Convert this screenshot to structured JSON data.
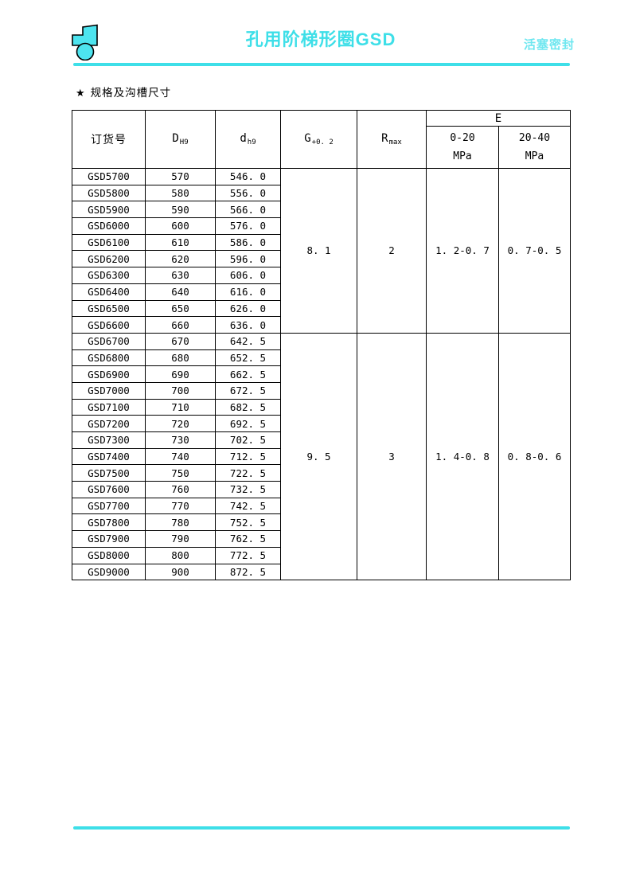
{
  "page": {
    "title": "孔用阶梯形圈GSD",
    "corner_label": "活塞密封",
    "section_heading": {
      "star": "★",
      "text": "规格及沟槽尺寸"
    },
    "colors": {
      "accent": "#3EDFE8",
      "accent_light": "#6FE7F0",
      "table_border": "#000000",
      "text": "#000000"
    },
    "icons": {
      "logo": "seal-cross-section-icon",
      "star": "star-icon"
    }
  },
  "table": {
    "headers": {
      "order_no": "订货号",
      "D_base": "D",
      "D_sub": "H9",
      "d_base": "d",
      "d_sub": "h9",
      "G_base": "G",
      "G_sub": "+0. 2",
      "R_base": "R",
      "R_sub": "max",
      "E": "E",
      "E_col1_range": "0-20",
      "E_col1_unit": "MPa",
      "E_col2_range": "20-40",
      "E_col2_unit": "MPa"
    },
    "groups": [
      {
        "G": "8. 1",
        "R": "2",
        "E1": "1. 2-0. 7",
        "E2": "0. 7-0. 5",
        "rows": [
          [
            "GSD5700",
            "570",
            "546. 0"
          ],
          [
            "GSD5800",
            "580",
            "556. 0"
          ],
          [
            "GSD5900",
            "590",
            "566. 0"
          ],
          [
            "GSD6000",
            "600",
            "576. 0"
          ],
          [
            "GSD6100",
            "610",
            "586. 0"
          ],
          [
            "GSD6200",
            "620",
            "596. 0"
          ],
          [
            "GSD6300",
            "630",
            "606. 0"
          ],
          [
            "GSD6400",
            "640",
            "616. 0"
          ],
          [
            "GSD6500",
            "650",
            "626. 0"
          ],
          [
            "GSD6600",
            "660",
            "636. 0"
          ]
        ]
      },
      {
        "G": "9. 5",
        "R": "3",
        "E1": "1. 4-0. 8",
        "E2": "0. 8-0. 6",
        "rows": [
          [
            "GSD6700",
            "670",
            "642. 5"
          ],
          [
            "GSD6800",
            "680",
            "652. 5"
          ],
          [
            "GSD6900",
            "690",
            "662. 5"
          ],
          [
            "GSD7000",
            "700",
            "672. 5"
          ],
          [
            "GSD7100",
            "710",
            "682. 5"
          ],
          [
            "GSD7200",
            "720",
            "692. 5"
          ],
          [
            "GSD7300",
            "730",
            "702. 5"
          ],
          [
            "GSD7400",
            "740",
            "712. 5"
          ],
          [
            "GSD7500",
            "750",
            "722. 5"
          ],
          [
            "GSD7600",
            "760",
            "732. 5"
          ],
          [
            "GSD7700",
            "770",
            "742. 5"
          ],
          [
            "GSD7800",
            "780",
            "752. 5"
          ],
          [
            "GSD7900",
            "790",
            "762. 5"
          ],
          [
            "GSD8000",
            "800",
            "772. 5"
          ],
          [
            "GSD9000",
            "900",
            "872. 5"
          ]
        ]
      }
    ]
  }
}
